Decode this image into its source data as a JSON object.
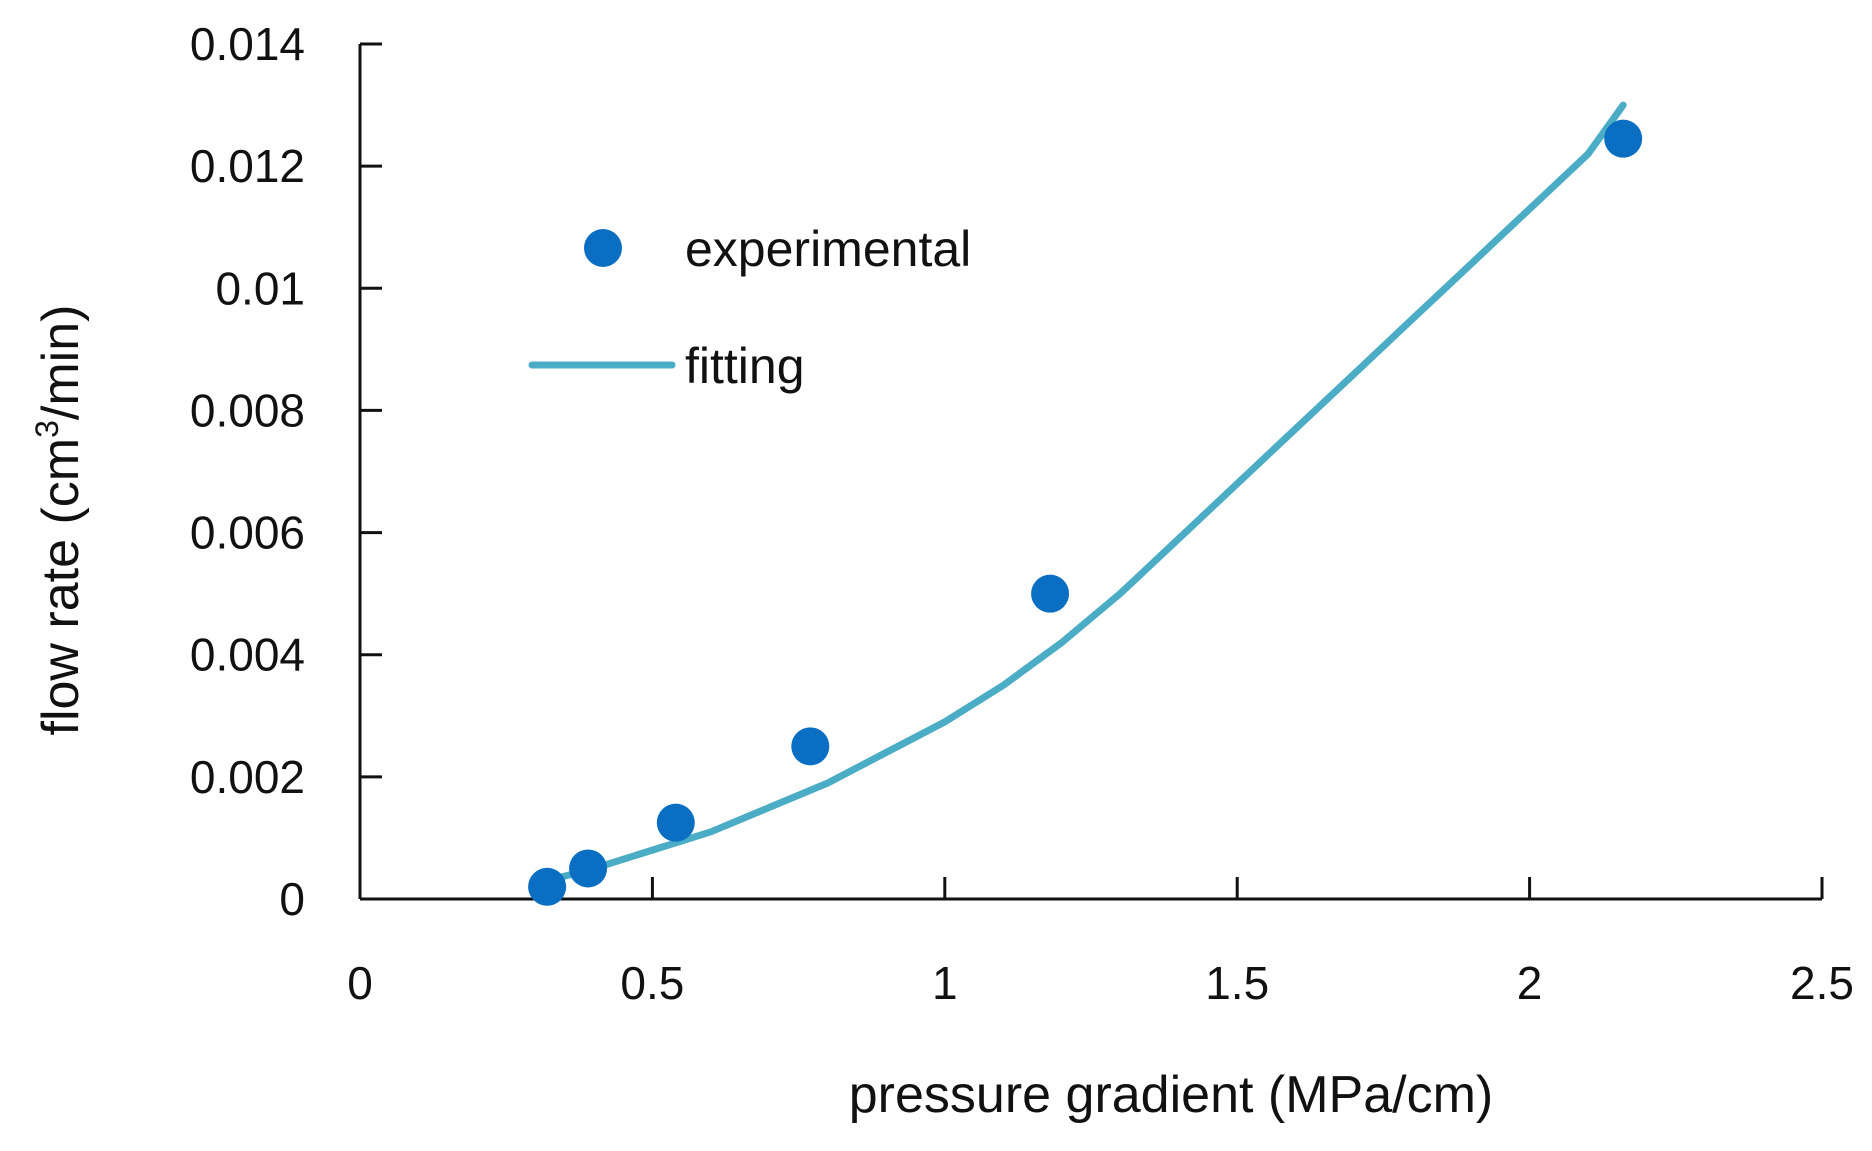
{
  "chart_data": {
    "type": "scatter",
    "title": "",
    "xlabel": "pressure gradient (MPa/cm)",
    "ylabel": {
      "prefix": "flow rate (cm",
      "superscript": "3",
      "suffix": "/min)"
    },
    "xlim": [
      0,
      2.5
    ],
    "ylim": [
      0,
      0.014
    ],
    "x_ticks": [
      "0",
      "0.5",
      "1",
      "1.5",
      "2",
      "2.5"
    ],
    "y_ticks": [
      "0",
      "0.002",
      "0.004",
      "0.006",
      "0.008",
      "0.01",
      "0.012",
      "0.014"
    ],
    "x_tick_values": [
      0,
      0.5,
      1,
      1.5,
      2,
      2.5
    ],
    "y_tick_values": [
      0,
      0.002,
      0.004,
      0.006,
      0.008,
      0.01,
      0.012,
      0.014
    ],
    "grid": false,
    "legend_position": "upper-left",
    "series": [
      {
        "name": "experimental",
        "kind": "scatter",
        "color": "#0a6fc2",
        "x": [
          0.32,
          0.39,
          0.54,
          0.77,
          1.18,
          2.16
        ],
        "y": [
          0.0002,
          0.0005,
          0.00125,
          0.0025,
          0.005,
          0.01245
        ]
      },
      {
        "name": "fitting",
        "kind": "line",
        "color": "#4bacc6",
        "x": [
          0.32,
          0.4,
          0.5,
          0.6,
          0.7,
          0.8,
          0.9,
          1.0,
          1.1,
          1.2,
          1.3,
          1.4,
          1.5,
          1.6,
          1.7,
          1.8,
          1.9,
          2.0,
          2.1,
          2.16
        ],
        "y": [
          0.0003,
          0.0005,
          0.0008,
          0.0011,
          0.0015,
          0.0019,
          0.0024,
          0.0029,
          0.0035,
          0.0042,
          0.005,
          0.0059,
          0.0068,
          0.0077,
          0.0086,
          0.0095,
          0.0104,
          0.0113,
          0.0122,
          0.013
        ]
      }
    ]
  }
}
